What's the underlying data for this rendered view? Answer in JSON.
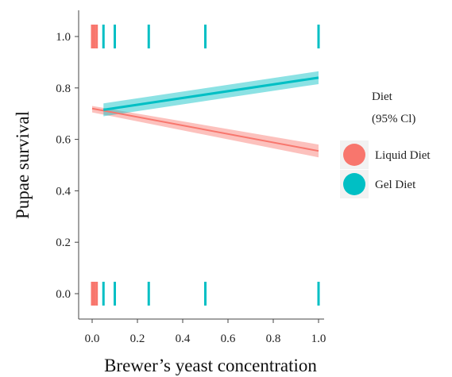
{
  "chart_data": {
    "type": "line",
    "title": "",
    "xlabel": "Brewer’s yeast concentration",
    "ylabel": "Pupae survival",
    "xlim": [
      -0.05,
      1.02
    ],
    "ylim": [
      -0.1,
      1.1
    ],
    "x_ticks": [
      0.0,
      0.2,
      0.4,
      0.6,
      0.8,
      1.0
    ],
    "x_tick_labels": [
      "0.0",
      "0.2",
      "0.4",
      "0.6",
      "0.8",
      "1.0"
    ],
    "y_ticks": [
      0.0,
      0.2,
      0.4,
      0.6,
      0.8,
      1.0
    ],
    "y_tick_labels": [
      "0.0",
      "0.2",
      "0.4",
      "0.6",
      "0.8",
      "1.0"
    ],
    "grid": false,
    "legend": {
      "title_line1": "Diet",
      "title_line2": "(95% Cl)",
      "placement": "right"
    },
    "series": [
      {
        "name": "Liquid  Diet",
        "color": "#f8766d",
        "x": [
          0.0,
          1.0
        ],
        "y": [
          0.72,
          0.555
        ],
        "ci_lower": [
          0.705,
          0.53
        ],
        "ci_upper": [
          0.73,
          0.58
        ],
        "rug_x": [
          0.0,
          0.01,
          0.02
        ]
      },
      {
        "name": "Gel Diet",
        "color": "#00bfc4",
        "x": [
          0.05,
          1.0
        ],
        "y": [
          0.715,
          0.84
        ],
        "ci_lower": [
          0.69,
          0.815
        ],
        "ci_upper": [
          0.74,
          0.865
        ],
        "rug_x": [
          0.05,
          0.1,
          0.25,
          0.5,
          1.0
        ]
      }
    ]
  }
}
